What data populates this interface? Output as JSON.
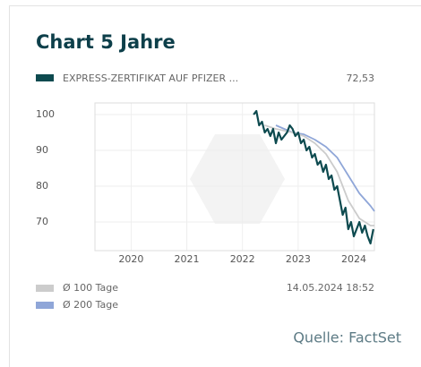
{
  "chart_data": {
    "type": "line",
    "title": "Chart 5 Jahre",
    "legend_value": "72,53",
    "timestamp": "14.05.2024 18:52",
    "source": "Quelle: FactSet",
    "xlim": [
      2019.35,
      2024.37
    ],
    "xticks": [
      2020,
      2021,
      2022,
      2023,
      2024
    ],
    "ylim": [
      62,
      103.25
    ],
    "yticks": [
      70,
      80,
      90,
      100
    ],
    "grid": true,
    "series": [
      {
        "name": "EXPRESS-ZERTIFIKAT AUF PFIZER ...",
        "color": "#0d4a4f",
        "x": [
          2022.2,
          2022.25,
          2022.3,
          2022.35,
          2022.4,
          2022.45,
          2022.5,
          2022.55,
          2022.6,
          2022.65,
          2022.7,
          2022.75,
          2022.8,
          2022.85,
          2022.9,
          2022.95,
          2023.0,
          2023.05,
          2023.1,
          2023.15,
          2023.2,
          2023.25,
          2023.3,
          2023.35,
          2023.4,
          2023.45,
          2023.5,
          2023.55,
          2023.6,
          2023.65,
          2023.7,
          2023.75,
          2023.8,
          2023.85,
          2023.9,
          2023.95,
          2024.0,
          2024.05,
          2024.1,
          2024.15,
          2024.2,
          2024.25,
          2024.3,
          2024.35
        ],
        "values": [
          100,
          101,
          97,
          98,
          95,
          96,
          94,
          96,
          92,
          95,
          93,
          94,
          95,
          97,
          96,
          94,
          95,
          92,
          93,
          90,
          91,
          88,
          89,
          86,
          87,
          84,
          86,
          82,
          83,
          79,
          80,
          76,
          72,
          74,
          68,
          70,
          66,
          68,
          70,
          67,
          69,
          66,
          64,
          68
        ]
      },
      {
        "name": "Ø 100 Tage",
        "color": "#cccccc",
        "x": [
          2022.4,
          2022.6,
          2022.9,
          2023.1,
          2023.3,
          2023.5,
          2023.7,
          2023.9,
          2024.1,
          2024.3,
          2024.37
        ],
        "values": [
          97,
          96,
          95,
          94,
          92,
          89,
          84,
          76,
          71,
          69,
          69
        ]
      },
      {
        "name": "Ø 200 Tage",
        "color": "#8fa6d8",
        "x": [
          2022.6,
          2022.9,
          2023.1,
          2023.3,
          2023.5,
          2023.7,
          2023.9,
          2024.1,
          2024.3,
          2024.37
        ],
        "values": [
          97,
          95,
          94.5,
          93,
          91,
          88,
          83,
          78,
          74.5,
          73
        ]
      }
    ]
  }
}
